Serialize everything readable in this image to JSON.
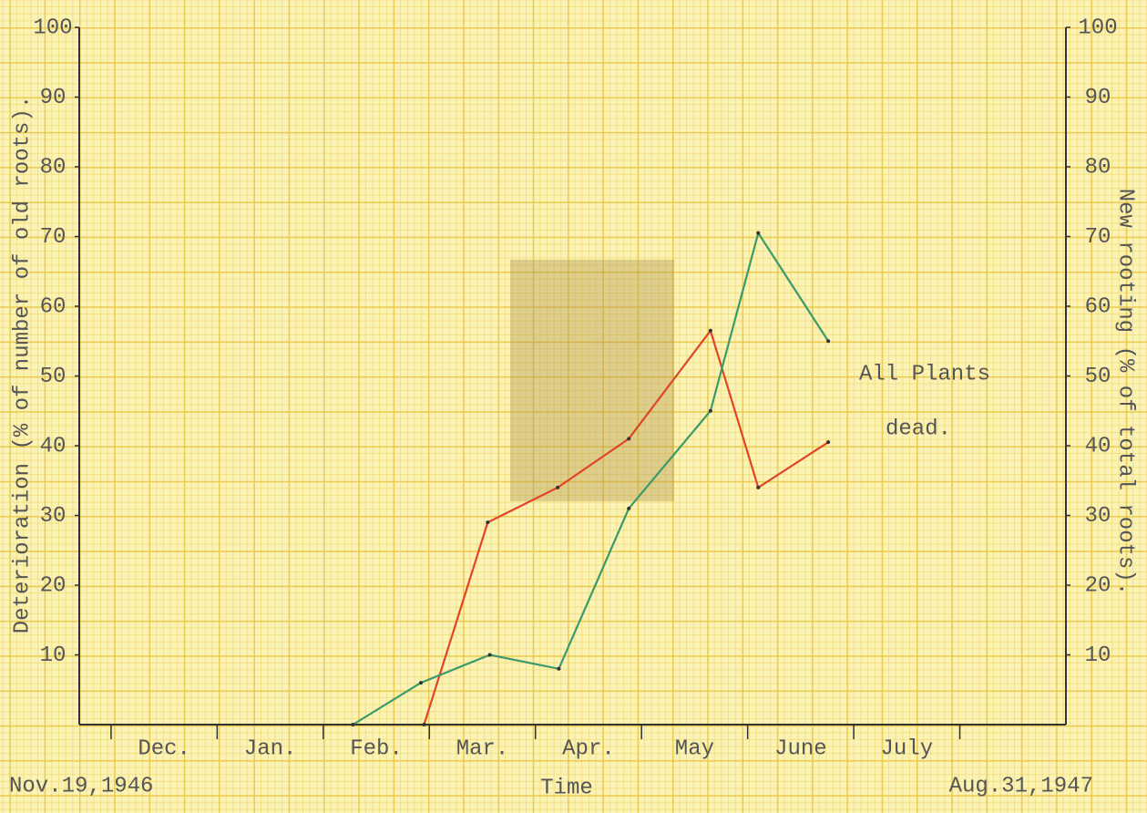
{
  "chart_data": {
    "type": "line",
    "y_label": "Deterioration (% of number of old roots).",
    "y2_label": "New rooting (% of total roots).",
    "x_label": "Time",
    "x_start_label": "Nov.19,1946",
    "x_end_label": "Aug.31,1947",
    "annotation": [
      "All Plants",
      "dead."
    ],
    "categories": [
      "Dec.",
      "Jan.",
      "Feb.",
      "Mar.",
      "Apr.",
      "May",
      "June",
      "July"
    ],
    "xlim": [
      -0.3,
      9.0
    ],
    "xticks": [
      0,
      1,
      2,
      3,
      4,
      5,
      6,
      7,
      8
    ],
    "ylim": [
      0,
      100
    ],
    "yticks": [
      10,
      20,
      30,
      40,
      50,
      60,
      70,
      80,
      90,
      100
    ],
    "y2lim": [
      0,
      100
    ],
    "y2ticks": [
      10,
      20,
      30,
      40,
      50,
      60,
      70,
      80,
      90,
      100
    ],
    "series": [
      {
        "color": "#e0452a",
        "x": [
          2.95,
          3.55,
          4.21,
          4.88,
          5.65,
          6.1,
          6.76
        ],
        "values": [
          0,
          29,
          34,
          41,
          56.5,
          34,
          40.5
        ]
      },
      {
        "color": "#3a9a6a",
        "axis": "y2",
        "x": [
          2.28,
          2.92,
          3.57,
          4.22,
          4.88,
          5.65,
          6.1,
          6.76
        ],
        "values": [
          0,
          6,
          10,
          8,
          31,
          45,
          70.5,
          55
        ]
      }
    ]
  }
}
